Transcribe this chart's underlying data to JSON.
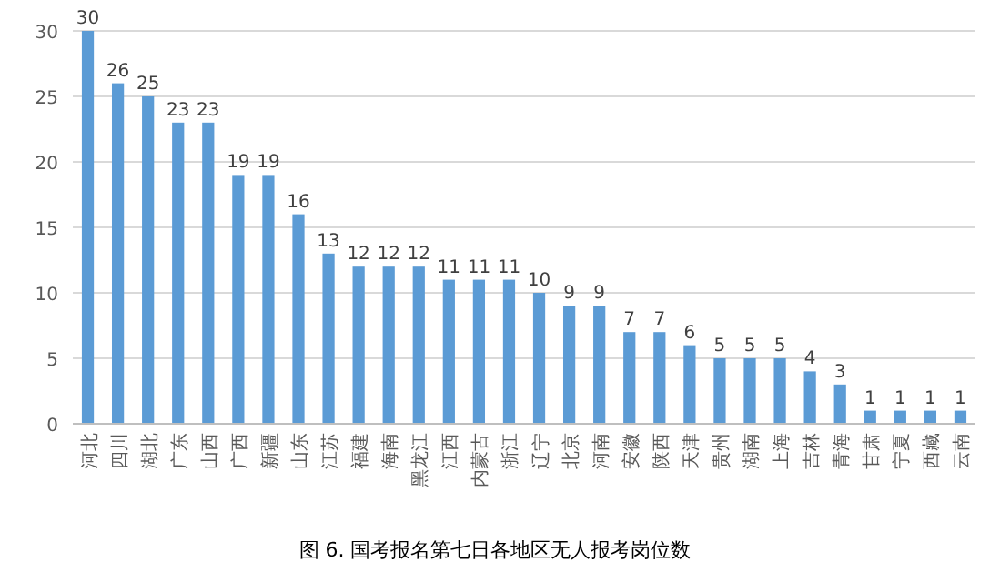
{
  "chart_data": {
    "type": "bar",
    "title": "图 6. 国考报名第七日各地区无人报考岗位数",
    "categories": [
      "河北",
      "四川",
      "湖北",
      "广东",
      "山西",
      "广西",
      "新疆",
      "山东",
      "江苏",
      "福建",
      "海南",
      "黑龙江",
      "江西",
      "内蒙古",
      "浙江",
      "辽宁",
      "北京",
      "河南",
      "安徽",
      "陕西",
      "天津",
      "贵州",
      "湖南",
      "上海",
      "吉林",
      "青海",
      "甘肃",
      "宁夏",
      "西藏",
      "云南"
    ],
    "values": [
      30,
      26,
      25,
      23,
      23,
      19,
      19,
      16,
      13,
      12,
      12,
      12,
      11,
      11,
      11,
      10,
      9,
      9,
      7,
      7,
      6,
      5,
      5,
      5,
      4,
      3,
      1,
      1,
      1,
      1
    ],
    "color": "#5b9bd5",
    "ylim": [
      0,
      30
    ],
    "yticks": [
      0,
      5,
      10,
      15,
      20,
      25,
      30
    ],
    "grid": "y",
    "data_labels": true
  }
}
